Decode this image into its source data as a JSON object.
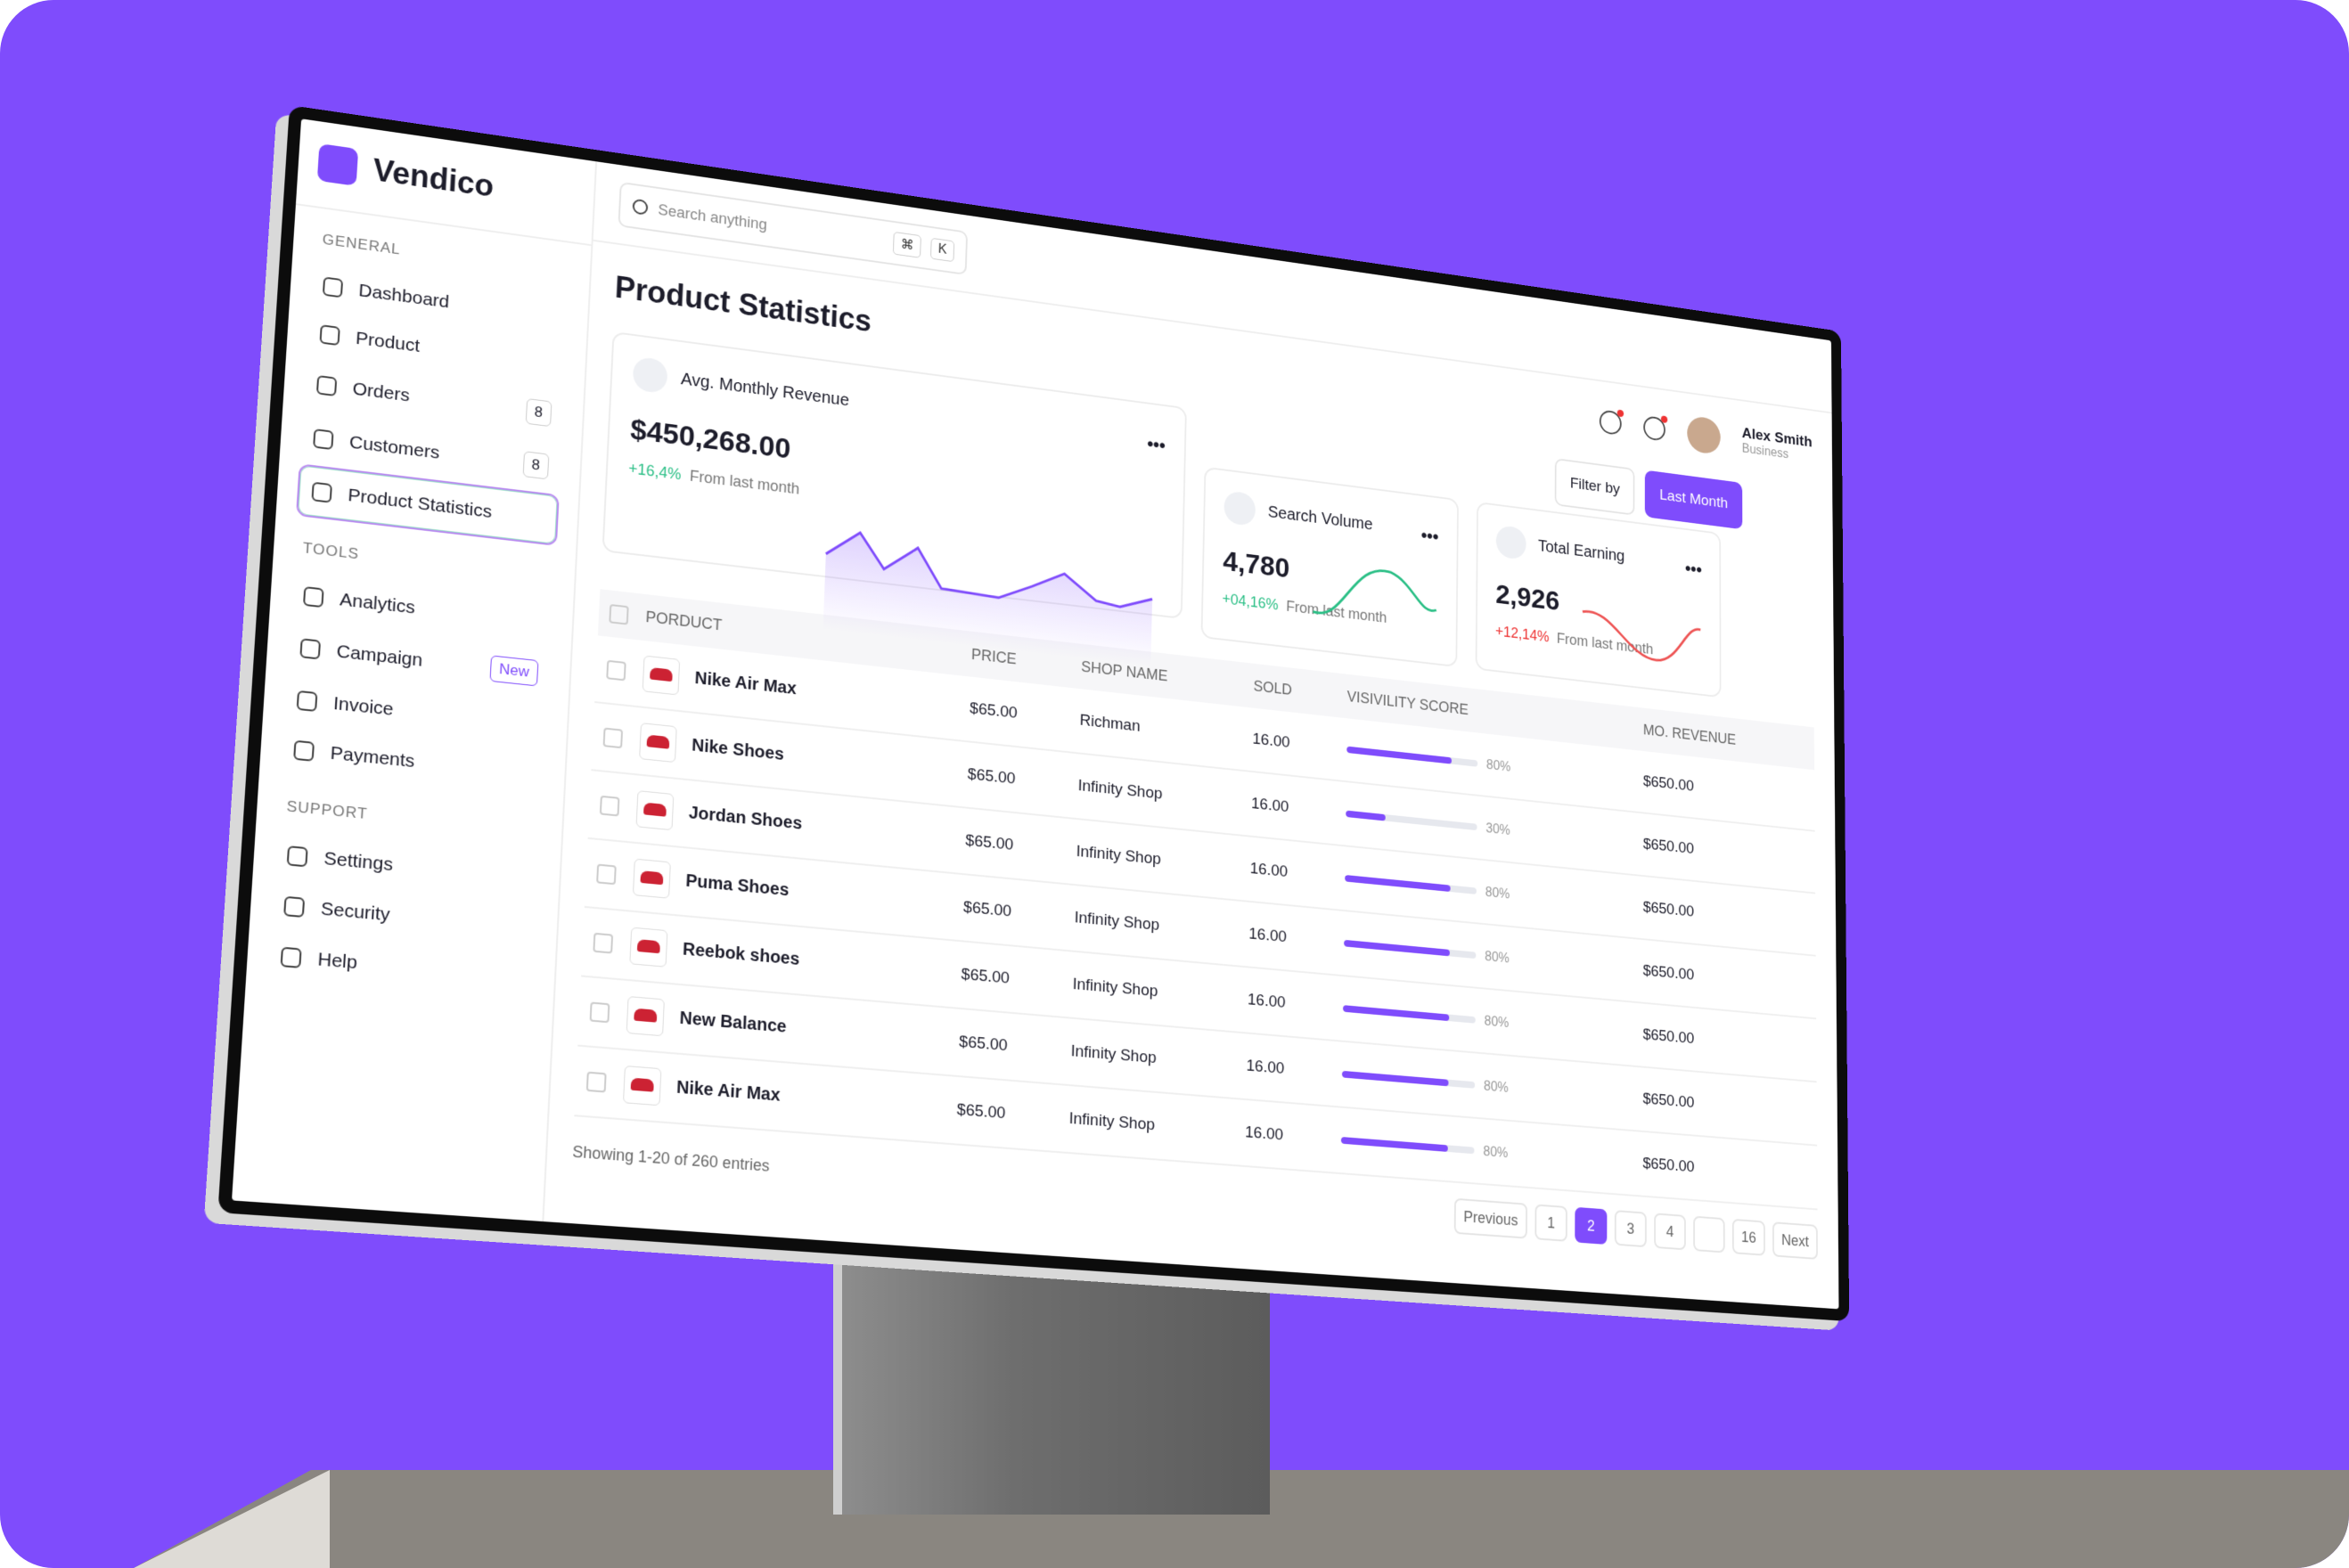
{
  "sidebar": {
    "brand": "Vendico",
    "sections": [
      {
        "title": "GENERAL",
        "items": [
          {
            "label": "Dashboard"
          },
          {
            "label": "Product"
          },
          {
            "label": "Orders",
            "badge": "8"
          },
          {
            "label": "Customers",
            "badge": "8"
          },
          {
            "label": "Product Statistics",
            "active": true
          }
        ]
      },
      {
        "title": "TOOLS",
        "items": [
          {
            "label": "Analytics"
          },
          {
            "label": "Campaign",
            "badge": "New"
          },
          {
            "label": "Invoice"
          },
          {
            "label": "Payments"
          }
        ]
      },
      {
        "title": "SUPPORT",
        "items": [
          {
            "label": "Settings"
          },
          {
            "label": "Security"
          },
          {
            "label": "Help"
          }
        ]
      }
    ]
  },
  "header": {
    "search_placeholder": "Search anything",
    "shortcut": [
      "⌘",
      "K"
    ],
    "user_name": "Alex Smith",
    "user_role": "Business"
  },
  "page_title": "Product Statistics",
  "filter": "Filter by",
  "period": "Last Month",
  "cards": [
    {
      "title": "Avg. Monthly Revenue",
      "value": "$450,268.00",
      "change": "+16,4%",
      "note": "From last month"
    },
    {
      "title": "Search Volume",
      "value": "4,780",
      "change": "+04,16%",
      "note": "From last month"
    },
    {
      "title": "Total Earning",
      "value": "2,926",
      "change": "+12,14%",
      "note": "From last month"
    }
  ],
  "table": {
    "columns": [
      "PORDUCT",
      "PRICE",
      "SHOP NAME",
      "SOLD",
      "VISIVILITY SCORE",
      "MO. REVENUE"
    ],
    "rows": [
      [
        "Nike Air Max",
        "$65.00",
        "Richman",
        "16.00",
        "80%",
        "$650.00"
      ],
      [
        "Nike Shoes",
        "$65.00",
        "Infinity Shop",
        "16.00",
        "30%",
        "$650.00"
      ],
      [
        "Jordan Shoes",
        "$65.00",
        "Infinity Shop",
        "16.00",
        "80%",
        "$650.00"
      ],
      [
        "Puma Shoes",
        "$65.00",
        "Infinity Shop",
        "16.00",
        "80%",
        "$650.00"
      ],
      [
        "Reebok shoes",
        "$65.00",
        "Infinity Shop",
        "16.00",
        "80%",
        "$650.00"
      ],
      [
        "New Balance",
        "$65.00",
        "Infinity Shop",
        "16.00",
        "80%",
        "$650.00"
      ],
      [
        "Nike Air Max",
        "$65.00",
        "Infinity Shop",
        "16.00",
        "80%",
        "$650.00"
      ]
    ]
  },
  "pagination": {
    "summary": "Showing 1-20 of 260 entries",
    "previous": "Previous",
    "pages": [
      "1",
      "2",
      "3",
      "4",
      "16"
    ],
    "next": "Next"
  }
}
